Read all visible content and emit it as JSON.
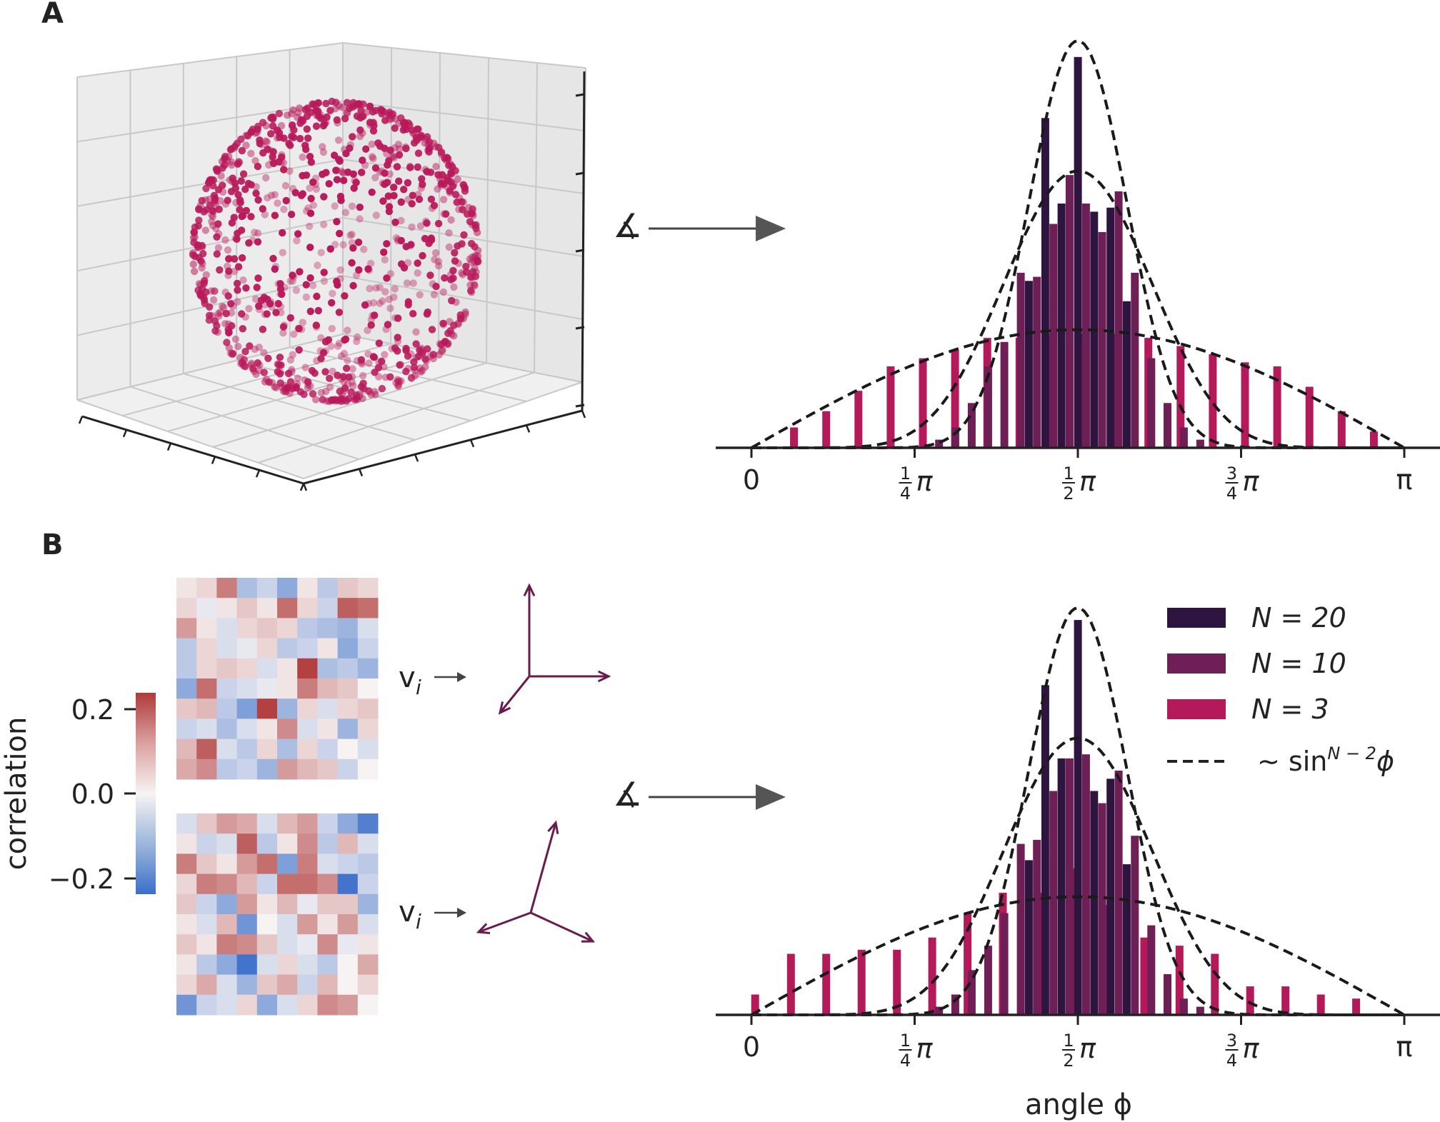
{
  "panels": {
    "a": "A",
    "b": "B"
  },
  "angle_symbol": "∡",
  "colors": {
    "n20": "#2d1540",
    "n10": "#6e1f55",
    "n3": "#b41a5a",
    "scatter": "#b8195a",
    "arrow": "#6a1b4d",
    "axis": "#222222"
  },
  "vectors": {
    "top_label": "v",
    "bottom_label": "v",
    "subscript": "i"
  },
  "colorbar": {
    "label": "correlation",
    "ticks": [
      "0.2",
      "0.0",
      "−0.2"
    ],
    "range": [
      -0.25,
      0.25
    ],
    "cmap": "coolwarm (blue–white–red)"
  },
  "heatmaps": {
    "top": [
      [
        0.02,
        0.04,
        0.16,
        -0.1,
        -0.06,
        -0.14,
        0.02,
        -0.08,
        0.06,
        0.04
      ],
      [
        0.04,
        -0.02,
        0.02,
        0.06,
        0.02,
        0.18,
        0.04,
        -0.06,
        0.2,
        0.18
      ],
      [
        0.12,
        0.02,
        -0.04,
        0.04,
        0.06,
        0.04,
        -0.08,
        -0.1,
        -0.12,
        -0.04
      ],
      [
        -0.08,
        0.04,
        -0.04,
        -0.02,
        0.04,
        -0.08,
        -0.06,
        0.02,
        -0.14,
        -0.06
      ],
      [
        -0.08,
        0.04,
        0.06,
        0.04,
        -0.04,
        0.02,
        0.24,
        -0.1,
        -0.08,
        -0.12
      ],
      [
        -0.14,
        0.18,
        -0.06,
        -0.04,
        -0.02,
        0.02,
        0.16,
        0.08,
        0.06,
        0.0
      ],
      [
        0.06,
        0.08,
        -0.08,
        -0.16,
        0.24,
        -0.12,
        0.04,
        -0.04,
        0.04,
        0.06
      ],
      [
        -0.06,
        -0.04,
        -0.1,
        -0.04,
        0.02,
        0.14,
        -0.04,
        0.02,
        -0.12,
        0.04
      ],
      [
        0.08,
        0.2,
        -0.04,
        -0.08,
        0.04,
        -0.1,
        0.04,
        -0.06,
        0.0,
        -0.04
      ],
      [
        0.1,
        0.14,
        -0.08,
        -0.06,
        -0.12,
        0.12,
        0.08,
        0.06,
        -0.06,
        0.0
      ]
    ],
    "bottom": [
      [
        -0.04,
        0.06,
        0.12,
        0.1,
        -0.04,
        0.08,
        0.12,
        -0.06,
        -0.14,
        -0.22
      ],
      [
        0.02,
        -0.06,
        -0.04,
        0.2,
        -0.08,
        0.02,
        0.14,
        -0.08,
        0.08,
        -0.04
      ],
      [
        0.16,
        0.06,
        0.02,
        0.12,
        0.18,
        -0.16,
        0.16,
        -0.04,
        -0.06,
        -0.08
      ],
      [
        0.04,
        0.16,
        0.14,
        0.08,
        -0.06,
        0.18,
        0.18,
        0.14,
        -0.24,
        -0.06
      ],
      [
        0.06,
        -0.06,
        -0.14,
        0.12,
        0.02,
        0.08,
        -0.02,
        0.06,
        0.06,
        -0.12
      ],
      [
        0.02,
        -0.04,
        0.08,
        -0.18,
        0.0,
        -0.04,
        0.12,
        0.02,
        0.12,
        -0.04
      ],
      [
        0.06,
        0.02,
        0.16,
        0.14,
        0.06,
        -0.04,
        -0.02,
        0.14,
        -0.02,
        0.02
      ],
      [
        0.02,
        -0.08,
        -0.14,
        -0.24,
        -0.04,
        0.04,
        -0.04,
        -0.08,
        0.0,
        0.1
      ],
      [
        0.04,
        0.1,
        -0.04,
        -0.12,
        0.06,
        0.1,
        -0.06,
        0.08,
        0.0,
        0.04
      ],
      [
        -0.18,
        -0.06,
        -0.04,
        0.04,
        -0.14,
        -0.04,
        0.04,
        0.14,
        0.12,
        0.0
      ]
    ]
  },
  "legend": {
    "entries": [
      {
        "label": "N = 20",
        "color": "#2d1540",
        "kind": "bar"
      },
      {
        "label": "N = 10",
        "color": "#6e1f55",
        "kind": "bar"
      },
      {
        "label": "N = 3",
        "color": "#b41a5a",
        "kind": "bar"
      },
      {
        "label": "∼ sinN−2ϕ",
        "text_main": "∼ sin",
        "text_sup": "N − 2",
        "text_after": "ϕ",
        "color": "#222222",
        "kind": "dashed"
      }
    ]
  },
  "chart_data": [
    {
      "type": "scatter",
      "panel": "A",
      "description_note": "",
      "points": "uniformly distributed points on the unit sphere in a 3D axes box",
      "series": [
        {
          "name": "",
          "color": "#b8195a"
        }
      ]
    },
    {
      "type": "bar",
      "panel": "A",
      "x_ticks": [
        "0",
        "1/4 π",
        "1/2 π",
        "3/4 π",
        "π"
      ],
      "xlim": [
        0,
        3.1416
      ],
      "ylim": [
        0,
        1.0
      ],
      "yaxis_visible": false,
      "dash_peaks": {
        "n20": 1.0,
        "n10": 0.68,
        "n3": 0.29
      },
      "series": [
        {
          "name": "N = 20",
          "exponent": 18,
          "x": [
            1.335,
            1.414,
            1.492,
            1.571,
            1.649,
            1.728,
            1.806
          ],
          "values": [
            0.41,
            0.81,
            0.6,
            0.96,
            0.58,
            0.59,
            0.36
          ]
        },
        {
          "name": "N = 10",
          "exponent": 8,
          "x": [
            0.903,
            0.981,
            1.06,
            1.139,
            1.217,
            1.296,
            1.374,
            1.453,
            1.531,
            1.61,
            1.688,
            1.767,
            1.845,
            1.924,
            2.002,
            2.081,
            2.16
          ],
          "values": [
            0.02,
            0.05,
            0.11,
            0.2,
            0.26,
            0.43,
            0.42,
            0.55,
            0.67,
            0.6,
            0.53,
            0.63,
            0.43,
            0.22,
            0.11,
            0.05,
            0.02
          ]
        },
        {
          "name": "N = 3",
          "exponent": 1,
          "x": [
            0.205,
            0.36,
            0.515,
            0.67,
            0.825,
            0.98,
            1.135,
            1.29,
            1.445,
            1.6,
            1.755,
            1.91,
            2.065,
            2.22,
            2.375,
            2.53,
            2.685,
            2.84,
            2.995
          ],
          "values": [
            0.05,
            0.09,
            0.14,
            0.2,
            0.22,
            0.24,
            0.27,
            0.27,
            0.28,
            0.28,
            0.28,
            0.27,
            0.25,
            0.23,
            0.21,
            0.2,
            0.15,
            0.09,
            0.04
          ]
        }
      ]
    },
    {
      "type": "bar",
      "panel": "B",
      "x_ticks": [
        "0",
        "1/4 π",
        "1/2 π",
        "3/4 π",
        "π"
      ],
      "xlabel": "angle ϕ",
      "xlim": [
        0,
        3.1416
      ],
      "ylim": [
        0,
        1.0
      ],
      "yaxis_visible": false,
      "dash_peaks": {
        "n20": 1.0,
        "n10": 0.68,
        "n3": 0.29
      },
      "series": [
        {
          "name": "N = 20",
          "exponent": 18,
          "x": [
            1.335,
            1.414,
            1.492,
            1.571,
            1.649,
            1.728,
            1.806
          ],
          "values": [
            0.38,
            0.81,
            0.63,
            0.97,
            0.55,
            0.58,
            0.37
          ]
        },
        {
          "name": "N = 10",
          "exponent": 8,
          "x": [
            0.903,
            0.981,
            1.06,
            1.139,
            1.217,
            1.296,
            1.374,
            1.453,
            1.531,
            1.61,
            1.688,
            1.767,
            1.845,
            1.924,
            2.002,
            2.081,
            2.16
          ],
          "values": [
            0.02,
            0.05,
            0.11,
            0.17,
            0.25,
            0.42,
            0.43,
            0.55,
            0.63,
            0.64,
            0.52,
            0.6,
            0.44,
            0.22,
            0.1,
            0.04,
            0.02
          ]
        },
        {
          "name": "N = 3",
          "exponent": 1,
          "x": [
            0.018,
            0.19,
            0.36,
            0.53,
            0.7,
            0.87,
            1.04,
            1.21,
            1.38,
            1.55,
            1.72,
            1.89,
            2.06,
            2.23,
            2.4,
            2.57,
            2.74,
            2.91
          ],
          "values": [
            0.05,
            0.15,
            0.15,
            0.16,
            0.16,
            0.19,
            0.25,
            0.3,
            0.3,
            0.36,
            0.27,
            0.19,
            0.17,
            0.15,
            0.07,
            0.07,
            0.05,
            0.04
          ]
        }
      ]
    }
  ]
}
